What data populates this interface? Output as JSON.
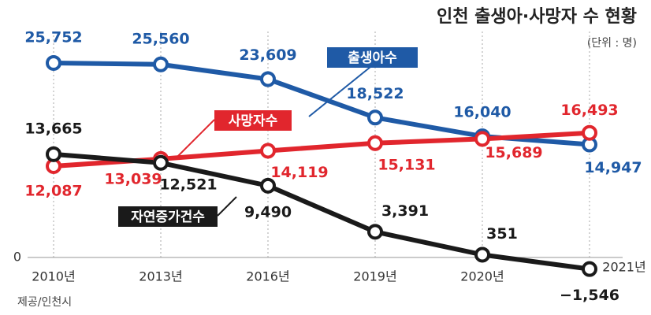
{
  "chart_data": {
    "type": "line",
    "title": "인천 출생아·사망자 수 현황",
    "subtitle": "(단위 : 명)",
    "source": "제공/인천시",
    "categories": [
      "2010년",
      "2013년",
      "2016년",
      "2019년",
      "2020년",
      "2021년"
    ],
    "series": [
      {
        "name": "출생아수",
        "color": "#1f5aa6",
        "values": [
          25752,
          25560,
          23609,
          18522,
          16040,
          14947
        ],
        "value_labels": [
          "25,752",
          "25,560",
          "23,609",
          "18,522",
          "16,040",
          "14,947"
        ]
      },
      {
        "name": "사망자수",
        "color": "#e1262d",
        "values": [
          12087,
          13039,
          14119,
          15131,
          15689,
          16493
        ],
        "value_labels": [
          "12,087",
          "13,039",
          "14,119",
          "15,131",
          "15,689",
          "16,493"
        ]
      },
      {
        "name": "자연증가건수",
        "color": "#1a1a1a",
        "values": [
          13665,
          12521,
          9490,
          3391,
          351,
          -1546
        ],
        "value_labels": [
          "13,665",
          "12,521",
          "9,490",
          "3,391",
          "351",
          "−1,546"
        ]
      }
    ],
    "ylim": [
      -2000,
      27000
    ],
    "yticks": [
      0
    ],
    "grid": true
  }
}
